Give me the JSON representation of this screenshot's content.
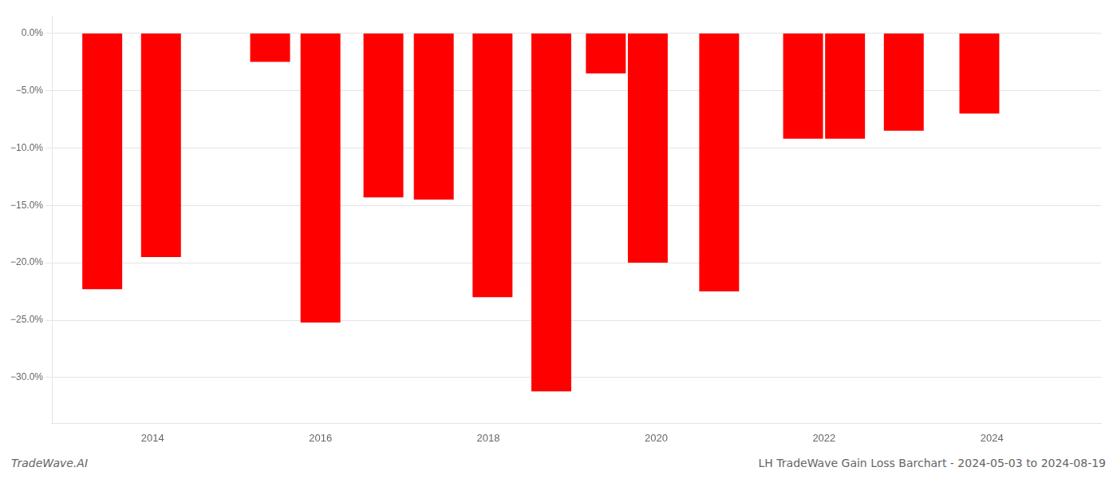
{
  "chart_data": {
    "type": "bar",
    "x": [
      2013.4,
      2014.1,
      2015.4,
      2016.0,
      2016.75,
      2017.35,
      2018.05,
      2018.75,
      2019.4,
      2019.9,
      2020.75,
      2021.75,
      2022.25,
      2022.95,
      2023.85
    ],
    "values": [
      -22.3,
      -19.5,
      -2.5,
      -25.2,
      -14.3,
      -14.5,
      -23.0,
      -31.2,
      -3.5,
      -20.0,
      -22.5,
      -9.2,
      -9.2,
      -8.5,
      -7.0
    ],
    "color": "#ff0000",
    "xlim": [
      2012.8,
      2025.3
    ],
    "xticks": [
      2014,
      2016,
      2018,
      2020,
      2022,
      2024
    ],
    "ylim": [
      -34,
      1.5
    ],
    "yticks": [
      {
        "value": 0,
        "label": "0.0%"
      },
      {
        "value": -5,
        "label": "−5.0%"
      },
      {
        "value": -10,
        "label": "−10.0%"
      },
      {
        "value": -15,
        "label": "−15.0%"
      },
      {
        "value": -20,
        "label": "−20.0%"
      },
      {
        "value": -25,
        "label": "−25.0%"
      },
      {
        "value": -30,
        "label": "−30.0%"
      }
    ],
    "grid": "y",
    "annotations": [
      "TradeWave.AI",
      "LH TradeWave Gain Loss Barchart - 2024-05-03 to 2024-08-19"
    ]
  }
}
